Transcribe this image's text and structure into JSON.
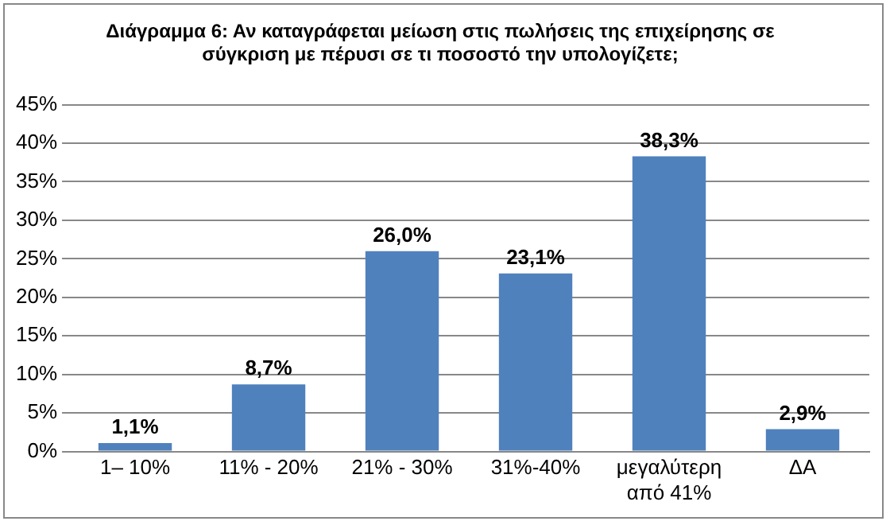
{
  "chart_data": {
    "type": "bar",
    "title": "Διάγραμμα 6: Αν καταγράφεται μείωση στις πωλήσεις της επιχείρησης σε σύγκριση με πέρυσι σε τι ποσοστό την υπολογίζετε;",
    "categories": [
      "1– 10%",
      "11% - 20%",
      "21% - 30%",
      "31%-40%",
      "μεγαλύτερη από 41%",
      "ΔΑ"
    ],
    "values": [
      1.1,
      8.7,
      26.0,
      23.1,
      38.3,
      2.9
    ],
    "value_labels": [
      "1,1%",
      "8,7%",
      "26,0%",
      "23,1%",
      "38,3%",
      "2,9%"
    ],
    "color": "#4f81bd",
    "ylim": [
      0,
      45
    ],
    "yticks": [
      {
        "value": 0,
        "label": "0%"
      },
      {
        "value": 5,
        "label": "5%"
      },
      {
        "value": 10,
        "label": "10%"
      },
      {
        "value": 15,
        "label": "15%"
      },
      {
        "value": 20,
        "label": "20%"
      },
      {
        "value": 25,
        "label": "25%"
      },
      {
        "value": 30,
        "label": "30%"
      },
      {
        "value": 35,
        "label": "35%"
      },
      {
        "value": 40,
        "label": "40%"
      },
      {
        "value": 45,
        "label": "45%"
      }
    ],
    "grid": "y",
    "legend": false
  }
}
